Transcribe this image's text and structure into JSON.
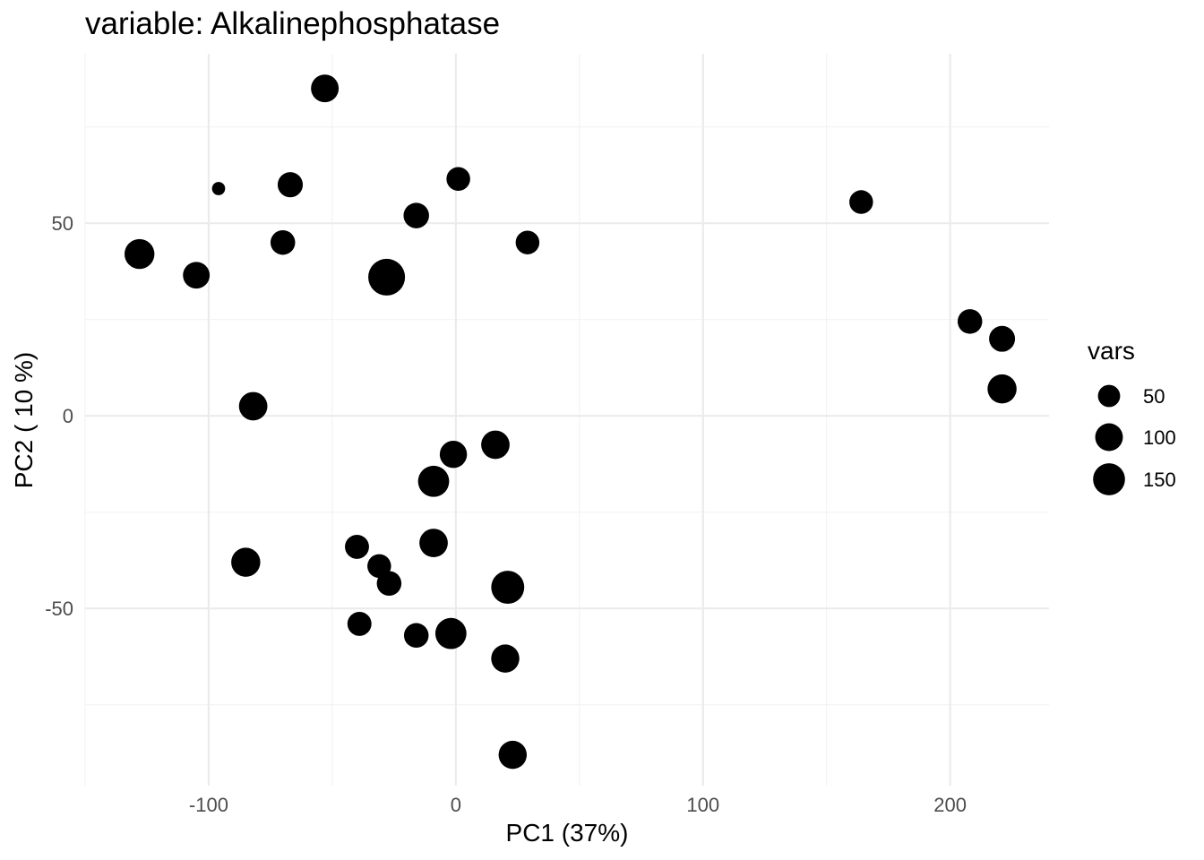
{
  "chart_data": {
    "type": "scatter",
    "title": "variable: Alkalinephosphatase",
    "xlabel": "PC1 (37%)",
    "ylabel": "PC2 ( 10 %)",
    "xlim": [
      -150,
      240
    ],
    "ylim": [
      -96,
      94
    ],
    "x_ticks": [
      -100,
      0,
      100,
      200
    ],
    "x_tick_labels": [
      "-100",
      "0",
      "100",
      "200"
    ],
    "y_ticks": [
      -50,
      0,
      50
    ],
    "y_tick_labels": [
      "-50",
      "0",
      "50"
    ],
    "grid": true,
    "point_color": "#000000",
    "size_variable": "vars",
    "legend": {
      "title": "vars",
      "position": "right",
      "entries": [
        {
          "label": "50",
          "value": 50
        },
        {
          "label": "100",
          "value": 100
        },
        {
          "label": "150",
          "value": 150
        }
      ]
    },
    "points": [
      {
        "x": -53,
        "y": 85,
        "size": 100
      },
      {
        "x": -96,
        "y": 59,
        "size": 5
      },
      {
        "x": -67,
        "y": 60,
        "size": 75
      },
      {
        "x": 1,
        "y": 61.5,
        "size": 62
      },
      {
        "x": 164,
        "y": 55.5,
        "size": 62
      },
      {
        "x": -16,
        "y": 52,
        "size": 78
      },
      {
        "x": -70,
        "y": 45,
        "size": 70
      },
      {
        "x": 29,
        "y": 45,
        "size": 62
      },
      {
        "x": -128,
        "y": 42,
        "size": 125
      },
      {
        "x": -105,
        "y": 36.5,
        "size": 90
      },
      {
        "x": -28,
        "y": 36,
        "size": 220
      },
      {
        "x": 208,
        "y": 24.5,
        "size": 70
      },
      {
        "x": 221,
        "y": 20,
        "size": 82
      },
      {
        "x": 221,
        "y": 7,
        "size": 115
      },
      {
        "x": -82,
        "y": 2.5,
        "size": 108
      },
      {
        "x": 16,
        "y": -7.5,
        "size": 108
      },
      {
        "x": -1,
        "y": -10,
        "size": 95
      },
      {
        "x": -9,
        "y": -17,
        "size": 140
      },
      {
        "x": -9,
        "y": -33,
        "size": 108
      },
      {
        "x": -40,
        "y": -34,
        "size": 65
      },
      {
        "x": -85,
        "y": -38,
        "size": 115
      },
      {
        "x": -31,
        "y": -39,
        "size": 62
      },
      {
        "x": -27,
        "y": -43.5,
        "size": 70
      },
      {
        "x": 21,
        "y": -44.5,
        "size": 165
      },
      {
        "x": -39,
        "y": -54,
        "size": 65
      },
      {
        "x": -16,
        "y": -57,
        "size": 70
      },
      {
        "x": -2,
        "y": -56.5,
        "size": 140
      },
      {
        "x": 20,
        "y": -63,
        "size": 105
      },
      {
        "x": 23,
        "y": -88,
        "size": 105
      }
    ]
  }
}
